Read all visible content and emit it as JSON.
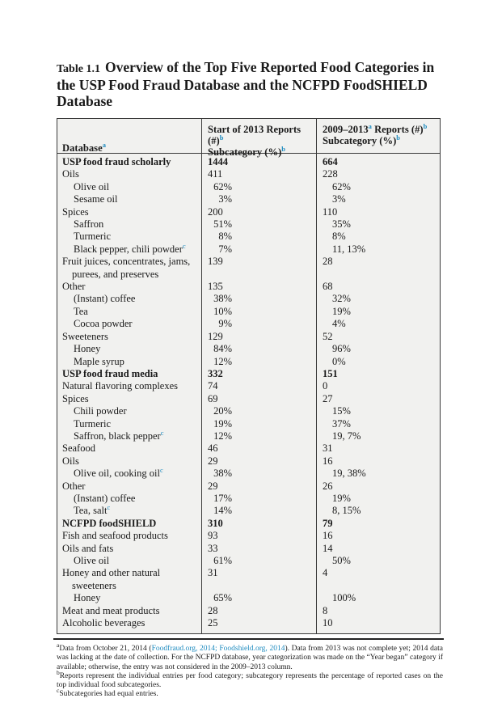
{
  "colors": {
    "accent": "#1e8bbf",
    "table_background": "#f1f1ef",
    "border": "#3a3a3a"
  },
  "title": {
    "prefix": "Table 1.1",
    "text": "Overview of the Top Five Reported Food Categories in the USP Food Fraud Database and the NCFPD FoodSHIELD Database"
  },
  "table": {
    "header": {
      "col1": [
        {
          "t": "Database"
        },
        {
          "sup": "a"
        }
      ],
      "col2_line1": [
        {
          "t": "Start of 2013 Reports (#)"
        },
        {
          "sup": "b"
        }
      ],
      "col2_line2": [
        {
          "t": "Subcategory (%)"
        },
        {
          "sup": "b"
        }
      ],
      "col3_line1": [
        {
          "t": "2009–2013"
        },
        {
          "sup": "a"
        },
        {
          "t": " Reports (#)"
        },
        {
          "sup": "b"
        }
      ],
      "col3_line2": [
        {
          "t": "Subcategory (%)"
        },
        {
          "sup": "b"
        }
      ]
    },
    "rows": [
      {
        "label": "USP food fraud scholarly",
        "v1": "1444",
        "v2": "664",
        "bold": true
      },
      {
        "label": "Oils",
        "v1": "411",
        "v2": "228"
      },
      {
        "label": "Olive oil",
        "v1": "62%",
        "v2": "62%",
        "sub": true
      },
      {
        "label": "Sesame oil",
        "v1": "3%",
        "v2": "3%",
        "sub": true
      },
      {
        "label": "Spices",
        "v1": "200",
        "v2": "110"
      },
      {
        "label": "Saffron",
        "v1": "51%",
        "v2": "35%",
        "sub": true
      },
      {
        "label": "Turmeric",
        "v1": "8%",
        "v2": "8%",
        "sub": true
      },
      {
        "label": "Black pepper, chili powder",
        "supc": true,
        "v1": "7%",
        "v2": "11, 13%",
        "sub": true
      },
      {
        "label": "Fruit juices, concentrates, jams, purees, and preserves",
        "v1": "139",
        "v2": "28",
        "hang": true
      },
      {
        "label": "Other",
        "v1": "135",
        "v2": "68"
      },
      {
        "label": "(Instant) coffee",
        "v1": "38%",
        "v2": "32%",
        "sub": true
      },
      {
        "label": "Tea",
        "v1": "10%",
        "v2": "19%",
        "sub": true
      },
      {
        "label": "Cocoa powder",
        "v1": "9%",
        "v2": "4%",
        "sub": true
      },
      {
        "label": "Sweeteners",
        "v1": "129",
        "v2": "52"
      },
      {
        "label": "Honey",
        "v1": "84%",
        "v2": "96%",
        "sub": true
      },
      {
        "label": "Maple syrup",
        "v1": "12%",
        "v2": "0%",
        "sub": true
      },
      {
        "label": "USP food fraud media",
        "v1": "332",
        "v2": "151",
        "bold": true
      },
      {
        "label": "Natural flavoring complexes",
        "v1": "74",
        "v2": "0"
      },
      {
        "label": "Spices",
        "v1": "69",
        "v2": "27"
      },
      {
        "label": "Chili powder",
        "v1": "20%",
        "v2": "15%",
        "sub": true
      },
      {
        "label": "Turmeric",
        "v1": "19%",
        "v2": "37%",
        "sub": true
      },
      {
        "label": "Saffron, black pepper",
        "supc": true,
        "v1": "12%",
        "v2": "19, 7%",
        "sub": true
      },
      {
        "label": "Seafood",
        "v1": "46",
        "v2": "31"
      },
      {
        "label": "Oils",
        "v1": "29",
        "v2": "16"
      },
      {
        "label": "Olive oil, cooking oil",
        "supc": true,
        "v1": "38%",
        "v2": "19, 38%",
        "sub": true
      },
      {
        "label": "Other",
        "v1": "29",
        "v2": "26"
      },
      {
        "label": "(Instant) coffee",
        "v1": "17%",
        "v2": "19%",
        "sub": true
      },
      {
        "label": "Tea, salt",
        "supc": true,
        "v1": "14%",
        "v2": "8, 15%",
        "sub": true
      },
      {
        "label": "NCFPD foodSHIELD",
        "v1": "310",
        "v2": "79",
        "bold": true
      },
      {
        "label": "Fish and seafood products",
        "v1": "93",
        "v2": "16"
      },
      {
        "label": "Oils and fats",
        "v1": "33",
        "v2": "14"
      },
      {
        "label": "Olive oil",
        "v1": "61%",
        "v2": "50%",
        "sub": true
      },
      {
        "label": "Honey and other natural sweeteners",
        "v1": "31",
        "v2": "4",
        "hang": true
      },
      {
        "label": "Honey",
        "v1": "65%",
        "v2": "100%",
        "sub": true
      },
      {
        "label": "Meat and meat products",
        "v1": "28",
        "v2": "8"
      },
      {
        "label": "Alcoholic beverages",
        "v1": "25",
        "v2": "10"
      }
    ]
  },
  "footnotes": [
    [
      {
        "sup": "a"
      },
      {
        "t": "Data from October 21, 2014 ("
      },
      {
        "link": "Foodfraud.org, 2014; Foodshield.org, 2014"
      },
      {
        "t": "). Data from 2013 was not complete yet; 2014 data was lacking at the date of collection. For the NCFPD database, year categorization was made on the “Year began” category if available; otherwise, the entry was not considered in the 2009–2013 column."
      }
    ],
    [
      {
        "sup": "b"
      },
      {
        "t": "Reports represent the individual entries per food category; subcategory represents the percentage of reported cases on the top individual food subcategories."
      }
    ],
    [
      {
        "sup": "c"
      },
      {
        "t": "Subcategories had equal entries."
      }
    ]
  ]
}
